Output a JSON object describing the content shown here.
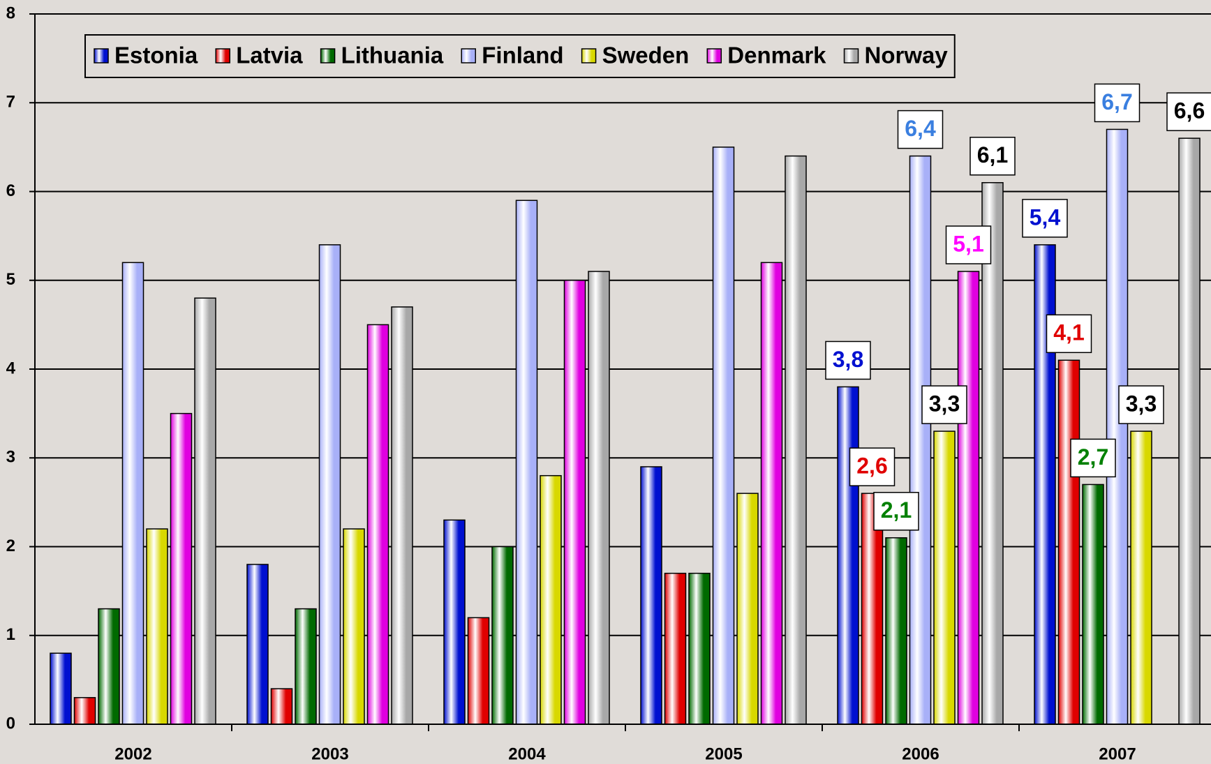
{
  "chart_data": {
    "type": "bar",
    "categories": [
      "2002",
      "2003",
      "2004",
      "2005",
      "2006",
      "2007"
    ],
    "series": [
      {
        "name": "Estonia",
        "color": "#0010d0",
        "label_color": "#0010d0",
        "values": [
          0.8,
          1.8,
          2.3,
          2.9,
          3.8,
          5.4
        ],
        "value_labels": [
          null,
          null,
          null,
          null,
          "3,8",
          "5,4"
        ]
      },
      {
        "name": "Latvia",
        "color": "#e00000",
        "label_color": "#e00000",
        "values": [
          0.3,
          0.4,
          1.2,
          1.7,
          2.6,
          4.1
        ],
        "value_labels": [
          null,
          null,
          null,
          null,
          "2,6",
          "4,1"
        ]
      },
      {
        "name": "Lithuania",
        "color": "#006a00",
        "label_color": "#008000",
        "values": [
          1.3,
          1.3,
          2.0,
          1.7,
          2.1,
          2.7
        ],
        "value_labels": [
          null,
          null,
          null,
          null,
          "2,1",
          "2,7"
        ]
      },
      {
        "name": "Finland",
        "color": "#a8b0f8",
        "label_color": "#3a7fe0",
        "values": [
          5.2,
          5.4,
          5.9,
          6.5,
          6.4,
          6.7
        ],
        "value_labels": [
          null,
          null,
          null,
          null,
          "6,4",
          "6,7"
        ]
      },
      {
        "name": "Sweden",
        "color": "#d8d800",
        "label_color": "#000000",
        "values": [
          2.2,
          2.2,
          2.8,
          2.6,
          3.3,
          3.3
        ],
        "value_labels": [
          null,
          null,
          null,
          null,
          "3,3",
          "3,3"
        ]
      },
      {
        "name": "Denmark",
        "color": "#e000e0",
        "label_color": "#ff00ff",
        "values": [
          3.5,
          4.5,
          5.0,
          5.2,
          5.1,
          null
        ],
        "value_labels": [
          null,
          null,
          null,
          null,
          "5,1",
          null
        ]
      },
      {
        "name": "Norway",
        "color": "#a8a8a8",
        "label_color": "#000000",
        "values": [
          4.8,
          4.7,
          5.1,
          6.4,
          6.1,
          6.6
        ],
        "value_labels": [
          null,
          null,
          null,
          null,
          "6,1",
          "6,6"
        ]
      }
    ],
    "ylim": [
      0,
      8
    ],
    "yticks": [
      0,
      1,
      2,
      3,
      4,
      5,
      6,
      7,
      8
    ],
    "grid": true,
    "legend": "top"
  }
}
